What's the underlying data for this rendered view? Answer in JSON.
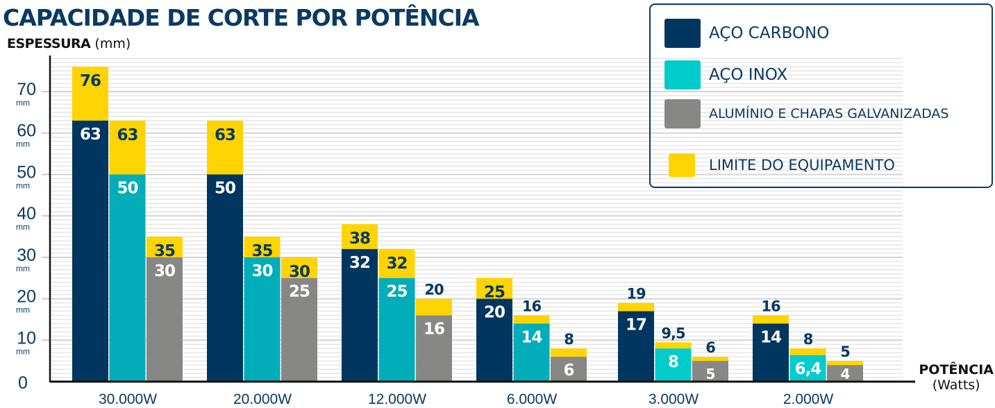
{
  "chart_data": {
    "type": "bar",
    "title": "CAPACIDADE DE CORTE POR POTÊNCIA",
    "ylabel_bold": "ESPESSURA",
    "ylabel_unit": "(mm)",
    "xlabel": "POTÊNCIA",
    "xlabel_unit": "(Watts)",
    "ylim": [
      0,
      78
    ],
    "yticks": [
      0,
      10,
      20,
      30,
      40,
      50,
      60,
      70
    ],
    "ytick_unit": "mm",
    "grid": true,
    "legend_position": "top-right",
    "categories": [
      "30.000W",
      "20.000W",
      "12.000W",
      "6.000W",
      "3.000W",
      "2.000W"
    ],
    "series": [
      {
        "name": "AÇO CARBONO",
        "color": "#00365f",
        "values": [
          63,
          50,
          32,
          20,
          17,
          14
        ],
        "labels": [
          "63",
          "50",
          "32",
          "20",
          "17",
          "14"
        ],
        "limits": [
          76,
          63,
          38,
          25,
          19,
          16
        ],
        "limit_labels": [
          "76",
          "63",
          "38",
          "25",
          "19",
          "16"
        ]
      },
      {
        "name": "AÇO INOX",
        "color": "#00cccc",
        "bar_colors": [
          "#00adb9",
          "#00adb9",
          "#00adb9",
          "#00adb9",
          "#00cccc",
          "#00cccc"
        ],
        "values": [
          50,
          30,
          25,
          14,
          8,
          6.4
        ],
        "labels": [
          "50",
          "30",
          "25",
          "14",
          "8",
          "6,4"
        ],
        "limits": [
          63,
          35,
          32,
          16,
          9.5,
          8
        ],
        "limit_labels": [
          "63",
          "35",
          "32",
          "16",
          "9,5",
          "8"
        ]
      },
      {
        "name": "ALUMÍNIO E CHAPAS GALVANIZADAS",
        "color": "#878786",
        "values": [
          30,
          25,
          16,
          6,
          5,
          4
        ],
        "labels": [
          "30",
          "25",
          "16",
          "6",
          "5",
          "4"
        ],
        "limits": [
          35,
          30,
          20,
          8,
          6,
          5
        ],
        "limit_labels": [
          "35",
          "30",
          "20",
          "8",
          "6",
          "5"
        ]
      }
    ],
    "limit_series": {
      "name": "LIMITE DO EQUIPAMENTO",
      "color": "#ffd400"
    }
  }
}
